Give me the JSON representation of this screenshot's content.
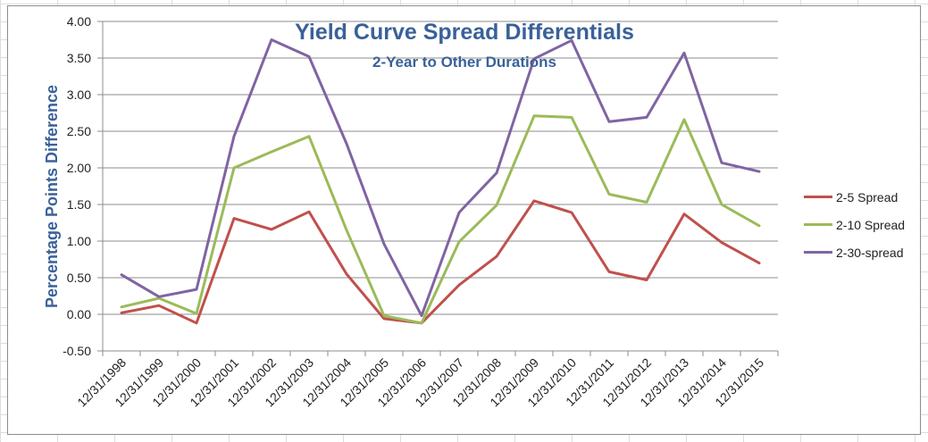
{
  "chart_data": {
    "type": "line",
    "title": "Yield Curve Spread Differentials",
    "subtitle": "2-Year to Other Durations",
    "xlabel": "",
    "ylabel": "Percentage Points Difference",
    "ylim": [
      -0.5,
      4.0
    ],
    "yticks": [
      "4.00",
      "3.50",
      "3.00",
      "2.50",
      "2.00",
      "1.50",
      "1.00",
      "0.50",
      "0.00",
      "-0.50"
    ],
    "grid": true,
    "legend_position": "right",
    "categories": [
      "12/31/1998",
      "12/31/1999",
      "12/31/2000",
      "12/31/2001",
      "12/31/2002",
      "12/31/2003",
      "12/31/2004",
      "12/31/2005",
      "12/31/2006",
      "12/31/2007",
      "12/31/2008",
      "12/31/2009",
      "12/31/2010",
      "12/31/2011",
      "12/31/2012",
      "12/31/2013",
      "12/31/2014",
      "12/31/2015"
    ],
    "series": [
      {
        "name": "2-5 Spread",
        "color": "#c0504d",
        "values": [
          0.02,
          0.12,
          -0.12,
          1.31,
          1.16,
          1.4,
          0.55,
          -0.06,
          -0.12,
          0.4,
          0.79,
          1.55,
          1.39,
          0.58,
          0.47,
          1.37,
          0.98,
          0.7
        ]
      },
      {
        "name": "2-10 Spread",
        "color": "#9bbb59",
        "values": [
          0.1,
          0.22,
          0.01,
          2.0,
          2.22,
          2.43,
          1.15,
          -0.02,
          -0.12,
          0.99,
          1.49,
          2.71,
          2.69,
          1.64,
          1.53,
          2.66,
          1.5,
          1.21
        ]
      },
      {
        "name": "2-30-spread",
        "color": "#8064a2",
        "values": [
          0.54,
          0.24,
          0.34,
          2.43,
          3.75,
          3.52,
          2.33,
          0.96,
          -0.02,
          1.39,
          1.93,
          3.49,
          3.74,
          2.63,
          2.69,
          3.57,
          2.07,
          1.95
        ]
      }
    ]
  }
}
